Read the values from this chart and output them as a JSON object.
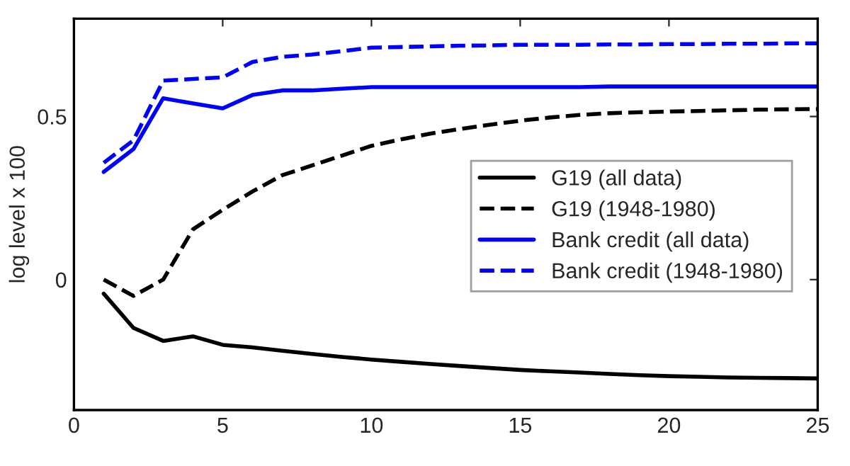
{
  "chart_data": {
    "type": "line",
    "ylabel": "log level x 100",
    "x": [
      1,
      2,
      3,
      4,
      5,
      6,
      7,
      8,
      9,
      10,
      11,
      12,
      13,
      14,
      15,
      16,
      17,
      18,
      19,
      20,
      21,
      22,
      23,
      24,
      25
    ],
    "series": [
      {
        "name": "G19 (all data)",
        "color": "#000000",
        "line_style": "solid",
        "values": [
          -0.043,
          -0.148,
          -0.188,
          -0.174,
          -0.2,
          -0.208,
          -0.218,
          -0.228,
          -0.237,
          -0.245,
          -0.252,
          -0.259,
          -0.265,
          -0.271,
          -0.277,
          -0.281,
          -0.285,
          -0.289,
          -0.293,
          -0.296,
          -0.298,
          -0.3,
          -0.301,
          -0.302,
          -0.303
        ]
      },
      {
        "name": "G19 (1948-1980)",
        "color": "#000000",
        "line_style": "dashed",
        "values": [
          0.0,
          -0.05,
          0.0,
          0.154,
          0.214,
          0.27,
          0.32,
          0.35,
          0.38,
          0.41,
          0.43,
          0.448,
          0.462,
          0.475,
          0.487,
          0.497,
          0.505,
          0.51,
          0.513,
          0.515,
          0.517,
          0.519,
          0.521,
          0.522,
          0.523
        ]
      },
      {
        "name": "Bank credit (all data)",
        "color": "#0000ff",
        "line_style": "solid",
        "values": [
          0.33,
          0.4,
          0.556,
          0.54,
          0.525,
          0.566,
          0.58,
          0.58,
          0.585,
          0.59,
          0.59,
          0.59,
          0.59,
          0.59,
          0.59,
          0.59,
          0.59,
          0.592,
          0.592,
          0.592,
          0.592,
          0.592,
          0.592,
          0.592,
          0.592
        ]
      },
      {
        "name": "Bank credit (1948-1980)",
        "color": "#0000ff",
        "line_style": "dashed",
        "values": [
          0.358,
          0.427,
          0.61,
          0.615,
          0.62,
          0.667,
          0.683,
          0.69,
          0.7,
          0.711,
          0.713,
          0.715,
          0.717,
          0.718,
          0.72,
          0.72,
          0.72,
          0.721,
          0.721,
          0.722,
          0.722,
          0.723,
          0.723,
          0.724,
          0.724
        ]
      }
    ],
    "xlim": [
      0,
      25
    ],
    "xticks": [
      0,
      5,
      10,
      15,
      20,
      25
    ],
    "ylim": [
      -0.4,
      0.8
    ],
    "yticks": [
      0,
      0.5
    ],
    "grid": false,
    "legend": "right"
  }
}
